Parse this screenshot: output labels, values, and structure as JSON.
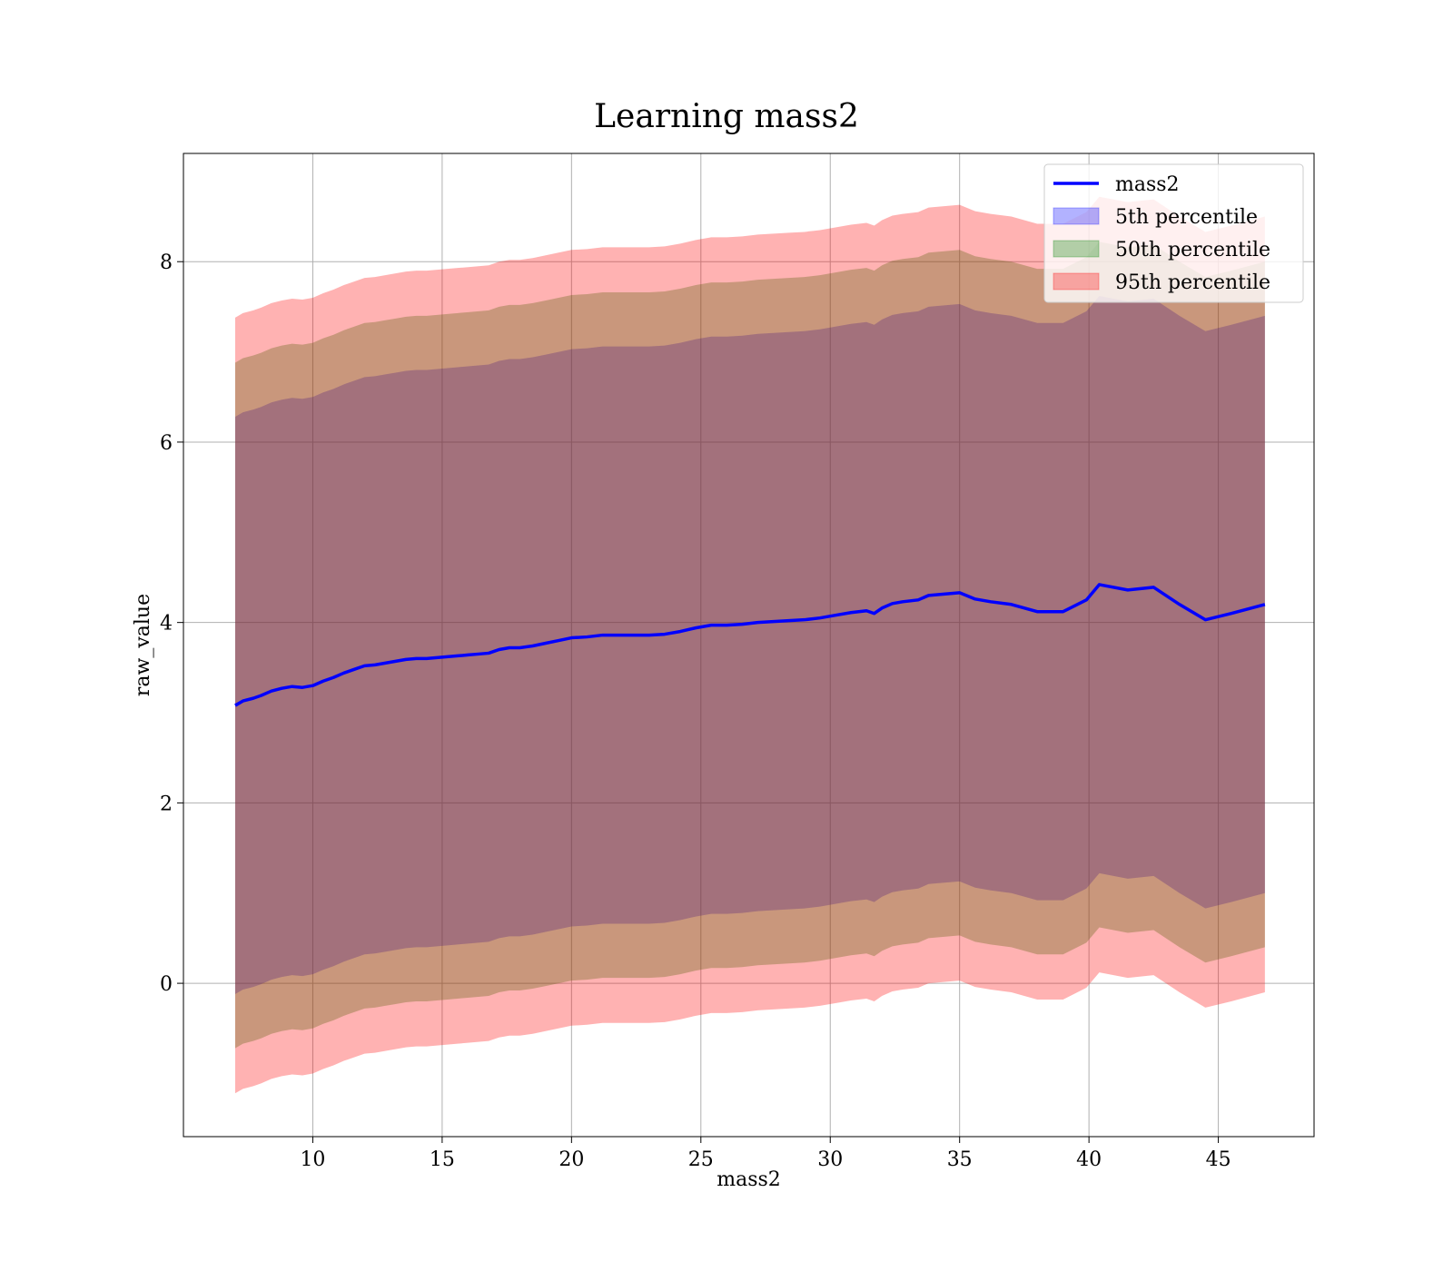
{
  "chart_data": {
    "type": "area",
    "title": "Learning mass2",
    "xlabel": "mass2",
    "ylabel": "raw_value",
    "xlim": [
      5.0,
      48.7
    ],
    "ylim": [
      -1.7,
      9.2
    ],
    "xticks": [
      10,
      15,
      20,
      25,
      30,
      35,
      40,
      45
    ],
    "yticks": [
      0,
      2,
      4,
      6,
      8
    ],
    "grid": true,
    "legend_position": "top-right",
    "x": [
      7.0,
      7.3,
      7.7,
      8.0,
      8.4,
      8.8,
      9.2,
      9.6,
      10.0,
      10.4,
      10.8,
      11.2,
      11.6,
      12.0,
      12.4,
      12.8,
      13.2,
      13.6,
      14.0,
      14.4,
      14.8,
      15.2,
      15.6,
      16.0,
      16.4,
      16.8,
      17.2,
      17.6,
      18.0,
      18.5,
      19.0,
      19.5,
      20.0,
      20.6,
      21.2,
      21.8,
      22.4,
      23.0,
      23.6,
      24.2,
      24.8,
      25.4,
      26.0,
      26.6,
      27.2,
      27.8,
      28.4,
      29.0,
      29.6,
      30.2,
      30.8,
      31.4,
      31.7,
      32.0,
      32.4,
      32.8,
      33.4,
      33.8,
      34.2,
      35.0,
      35.6,
      36.2,
      37.0,
      38.0,
      39.0,
      39.9,
      40.4,
      41.5,
      42.5,
      43.5,
      44.5,
      45.5,
      46.8
    ],
    "series": [
      {
        "name": "mass2",
        "color": "#0000ff",
        "values": [
          3.08,
          3.13,
          3.16,
          3.19,
          3.24,
          3.27,
          3.29,
          3.28,
          3.3,
          3.35,
          3.39,
          3.44,
          3.48,
          3.52,
          3.53,
          3.55,
          3.57,
          3.59,
          3.6,
          3.6,
          3.61,
          3.62,
          3.63,
          3.64,
          3.65,
          3.66,
          3.7,
          3.72,
          3.72,
          3.74,
          3.77,
          3.8,
          3.83,
          3.84,
          3.86,
          3.86,
          3.86,
          3.86,
          3.87,
          3.9,
          3.94,
          3.97,
          3.97,
          3.98,
          4.0,
          4.01,
          4.02,
          4.03,
          4.05,
          4.08,
          4.11,
          4.13,
          4.1,
          4.16,
          4.21,
          4.23,
          4.25,
          4.3,
          4.31,
          4.33,
          4.26,
          4.23,
          4.2,
          4.12,
          4.12,
          4.25,
          4.42,
          4.36,
          4.39,
          4.2,
          4.03,
          4.1,
          4.2
        ]
      },
      {
        "name": "5th percentile",
        "color": "#0000ff",
        "lower": [
          -0.12,
          -0.07,
          -0.04,
          -0.01,
          0.04,
          0.07,
          0.09,
          0.08,
          0.1,
          0.15,
          0.19,
          0.24,
          0.28,
          0.32,
          0.33,
          0.35,
          0.37,
          0.39,
          0.4,
          0.4,
          0.41,
          0.42,
          0.43,
          0.44,
          0.45,
          0.46,
          0.5,
          0.52,
          0.52,
          0.54,
          0.57,
          0.6,
          0.63,
          0.64,
          0.66,
          0.66,
          0.66,
          0.66,
          0.67,
          0.7,
          0.74,
          0.77,
          0.77,
          0.78,
          0.8,
          0.81,
          0.82,
          0.83,
          0.85,
          0.88,
          0.91,
          0.93,
          0.9,
          0.96,
          1.01,
          1.03,
          1.05,
          1.1,
          1.11,
          1.13,
          1.06,
          1.03,
          1.0,
          0.92,
          0.92,
          1.05,
          1.22,
          1.16,
          1.19,
          1.0,
          0.83,
          0.9,
          1.0
        ],
        "upper": [
          6.28,
          6.33,
          6.36,
          6.39,
          6.44,
          6.47,
          6.49,
          6.48,
          6.5,
          6.55,
          6.59,
          6.64,
          6.68,
          6.72,
          6.73,
          6.75,
          6.77,
          6.79,
          6.8,
          6.8,
          6.81,
          6.82,
          6.83,
          6.84,
          6.85,
          6.86,
          6.9,
          6.92,
          6.92,
          6.94,
          6.97,
          7.0,
          7.03,
          7.04,
          7.06,
          7.06,
          7.06,
          7.06,
          7.07,
          7.1,
          7.14,
          7.17,
          7.17,
          7.18,
          7.2,
          7.21,
          7.22,
          7.23,
          7.25,
          7.28,
          7.31,
          7.33,
          7.3,
          7.36,
          7.41,
          7.43,
          7.45,
          7.5,
          7.51,
          7.53,
          7.46,
          7.43,
          7.4,
          7.32,
          7.32,
          7.45,
          7.62,
          7.56,
          7.59,
          7.4,
          7.23,
          7.3,
          7.4
        ]
      },
      {
        "name": "50th percentile",
        "color": "#008000",
        "lower": [
          -0.72,
          -0.67,
          -0.64,
          -0.61,
          -0.56,
          -0.53,
          -0.51,
          -0.52,
          -0.5,
          -0.45,
          -0.41,
          -0.36,
          -0.32,
          -0.28,
          -0.27,
          -0.25,
          -0.23,
          -0.21,
          -0.2,
          -0.2,
          -0.19,
          -0.18,
          -0.17,
          -0.16,
          -0.15,
          -0.14,
          -0.1,
          -0.08,
          -0.08,
          -0.06,
          -0.03,
          0.0,
          0.03,
          0.04,
          0.06,
          0.06,
          0.06,
          0.06,
          0.07,
          0.1,
          0.14,
          0.17,
          0.17,
          0.18,
          0.2,
          0.21,
          0.22,
          0.23,
          0.25,
          0.28,
          0.31,
          0.33,
          0.3,
          0.36,
          0.41,
          0.43,
          0.45,
          0.5,
          0.51,
          0.53,
          0.46,
          0.43,
          0.4,
          0.32,
          0.32,
          0.45,
          0.62,
          0.56,
          0.59,
          0.4,
          0.23,
          0.3,
          0.4
        ],
        "upper": [
          6.88,
          6.93,
          6.96,
          6.99,
          7.04,
          7.07,
          7.09,
          7.08,
          7.1,
          7.15,
          7.19,
          7.24,
          7.28,
          7.32,
          7.33,
          7.35,
          7.37,
          7.39,
          7.4,
          7.4,
          7.41,
          7.42,
          7.43,
          7.44,
          7.45,
          7.46,
          7.5,
          7.52,
          7.52,
          7.54,
          7.57,
          7.6,
          7.63,
          7.64,
          7.66,
          7.66,
          7.66,
          7.66,
          7.67,
          7.7,
          7.74,
          7.77,
          7.77,
          7.78,
          7.8,
          7.81,
          7.82,
          7.83,
          7.85,
          7.88,
          7.91,
          7.93,
          7.9,
          7.96,
          8.01,
          8.03,
          8.05,
          8.1,
          8.11,
          8.13,
          8.06,
          8.03,
          8.0,
          7.92,
          7.92,
          8.05,
          8.22,
          8.16,
          8.19,
          8.0,
          7.83,
          7.9,
          8.0
        ]
      },
      {
        "name": "95th percentile",
        "color": "#ff0000",
        "lower": [
          -1.22,
          -1.17,
          -1.14,
          -1.11,
          -1.06,
          -1.03,
          -1.01,
          -1.02,
          -1.0,
          -0.95,
          -0.91,
          -0.86,
          -0.82,
          -0.78,
          -0.77,
          -0.75,
          -0.73,
          -0.71,
          -0.7,
          -0.7,
          -0.69,
          -0.68,
          -0.67,
          -0.66,
          -0.65,
          -0.64,
          -0.6,
          -0.58,
          -0.58,
          -0.56,
          -0.53,
          -0.5,
          -0.47,
          -0.46,
          -0.44,
          -0.44,
          -0.44,
          -0.44,
          -0.43,
          -0.4,
          -0.36,
          -0.33,
          -0.33,
          -0.32,
          -0.3,
          -0.29,
          -0.28,
          -0.27,
          -0.25,
          -0.22,
          -0.19,
          -0.17,
          -0.2,
          -0.14,
          -0.09,
          -0.07,
          -0.05,
          0.0,
          0.01,
          0.03,
          -0.04,
          -0.07,
          -0.1,
          -0.18,
          -0.18,
          -0.05,
          0.12,
          0.06,
          0.09,
          -0.1,
          -0.27,
          -0.2,
          -0.1
        ],
        "upper": [
          7.38,
          7.43,
          7.46,
          7.49,
          7.54,
          7.57,
          7.59,
          7.58,
          7.6,
          7.65,
          7.69,
          7.74,
          7.78,
          7.82,
          7.83,
          7.85,
          7.87,
          7.89,
          7.9,
          7.9,
          7.91,
          7.92,
          7.93,
          7.94,
          7.95,
          7.96,
          8.0,
          8.02,
          8.02,
          8.04,
          8.07,
          8.1,
          8.13,
          8.14,
          8.16,
          8.16,
          8.16,
          8.16,
          8.17,
          8.2,
          8.24,
          8.27,
          8.27,
          8.28,
          8.3,
          8.31,
          8.32,
          8.33,
          8.35,
          8.38,
          8.41,
          8.43,
          8.4,
          8.46,
          8.51,
          8.53,
          8.55,
          8.6,
          8.61,
          8.63,
          8.56,
          8.53,
          8.5,
          8.42,
          8.42,
          8.55,
          8.72,
          8.66,
          8.69,
          8.5,
          8.33,
          8.4,
          8.5
        ]
      }
    ]
  }
}
